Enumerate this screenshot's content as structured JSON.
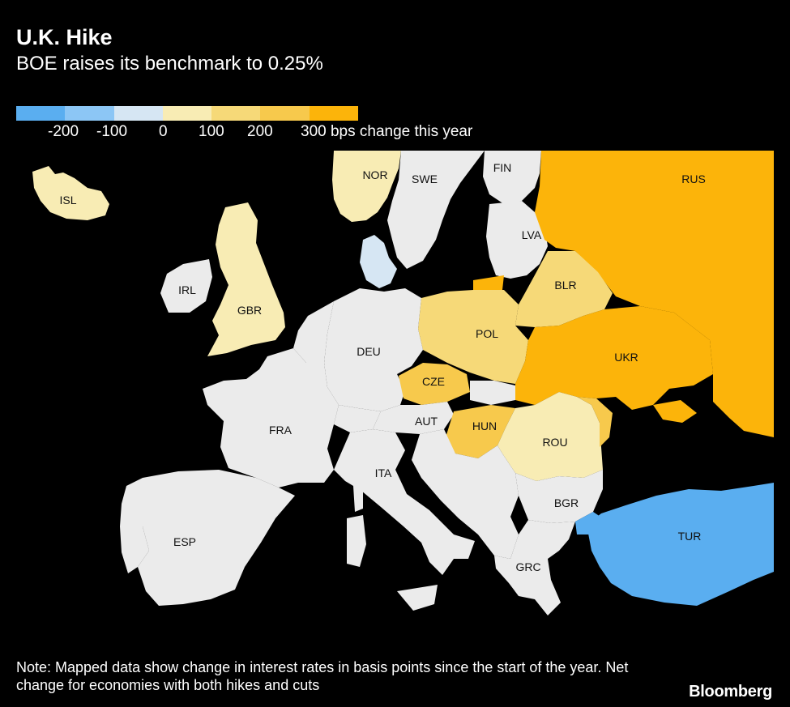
{
  "header": {
    "title": "U.K. Hike",
    "subtitle": "BOE raises its benchmark to 0.25%"
  },
  "legend": {
    "colors": [
      "#5aaef0",
      "#8cc6f5",
      "#d6e6f3",
      "#f8ecb4",
      "#f6d978",
      "#f7c94c",
      "#fcb40a"
    ],
    "labels": [
      "-200",
      "-100",
      "0",
      "100",
      "200",
      "300 bps change this year"
    ]
  },
  "map": {
    "colors": {
      "neutral": "#ebebeb",
      "light_yellow": "#f8ecb4",
      "yellow": "#f6d978",
      "mid_yellow": "#f7c94c",
      "orange": "#fcb40a",
      "light_blue": "#d6e6f3",
      "blue": "#5aaef0"
    },
    "countries": [
      {
        "code": "ISL",
        "label": "ISL"
      },
      {
        "code": "NOR",
        "label": "NOR"
      },
      {
        "code": "SWE",
        "label": "SWE"
      },
      {
        "code": "FIN",
        "label": "FIN"
      },
      {
        "code": "RUS",
        "label": "RUS"
      },
      {
        "code": "LVA",
        "label": "LVA"
      },
      {
        "code": "IRL",
        "label": "IRL"
      },
      {
        "code": "GBR",
        "label": "GBR"
      },
      {
        "code": "BLR",
        "label": "BLR"
      },
      {
        "code": "DEU",
        "label": "DEU"
      },
      {
        "code": "POL",
        "label": "POL"
      },
      {
        "code": "UKR",
        "label": "UKR"
      },
      {
        "code": "CZE",
        "label": "CZE"
      },
      {
        "code": "FRA",
        "label": "FRA"
      },
      {
        "code": "AUT",
        "label": "AUT"
      },
      {
        "code": "HUN",
        "label": "HUN"
      },
      {
        "code": "ROU",
        "label": "ROU"
      },
      {
        "code": "ITA",
        "label": "ITA"
      },
      {
        "code": "BGR",
        "label": "BGR"
      },
      {
        "code": "TUR",
        "label": "TUR"
      },
      {
        "code": "ESP",
        "label": "ESP"
      },
      {
        "code": "GRC",
        "label": "GRC"
      }
    ]
  },
  "footer": {
    "note": "Note: Mapped data show change in interest rates in basis points since the start of the year. Net change for economies with both hikes and cuts",
    "brand": "Bloomberg"
  }
}
